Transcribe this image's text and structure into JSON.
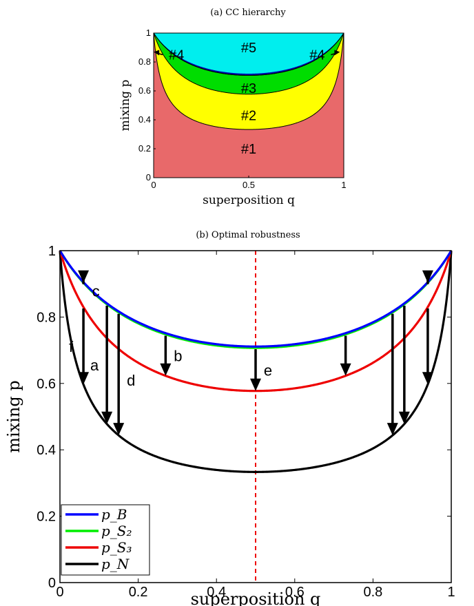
{
  "chart_data": [
    {
      "type": "area",
      "title": "(a) CC hierarchy",
      "xlabel": "superposition q",
      "ylabel": "mixing p",
      "xlim": [
        0,
        1
      ],
      "ylim": [
        0,
        1
      ],
      "xticks": [
        "0",
        "0.5",
        "1"
      ],
      "yticks": [
        "0",
        "0.2",
        "0.4",
        "0.6",
        "0.8",
        "1"
      ],
      "regions": [
        {
          "name": "#1",
          "color": "#e8696a",
          "label_at": {
            "x": 0.5,
            "y": 0.2
          }
        },
        {
          "name": "#2",
          "color": "#ffff00",
          "label_at": {
            "x": 0.5,
            "y": 0.43
          }
        },
        {
          "name": "#3",
          "color": "#00dd00",
          "label_at": {
            "x": 0.5,
            "y": 0.62
          }
        },
        {
          "name": "#4",
          "color": "#0000aa",
          "label_at": [
            {
              "x": 0.12,
              "y": 0.85
            },
            {
              "x": 0.86,
              "y": 0.85
            }
          ]
        },
        {
          "name": "#5",
          "color": "#00eeee",
          "label_at": {
            "x": 0.5,
            "y": 0.9
          }
        }
      ],
      "boundary_curves": [
        {
          "key": "p_N",
          "min": 0.3333
        },
        {
          "key": "p_S3",
          "min": 0.5774
        },
        {
          "key": "p_S2",
          "min": 0.7071
        },
        {
          "key": "p_B",
          "min": 0.7071
        }
      ],
      "grid": false
    },
    {
      "type": "line",
      "title": "(b) Optimal robustness",
      "xlabel": "superposition q",
      "ylabel": "mixing p",
      "xlim": [
        0,
        1
      ],
      "ylim": [
        0,
        1
      ],
      "xticks": [
        "0",
        "0.2",
        "0.4",
        "0.6",
        "0.8",
        "1"
      ],
      "yticks": [
        "0",
        "0.2",
        "0.4",
        "0.6",
        "0.8",
        "1"
      ],
      "legend_position": "bottom-left",
      "grid": false,
      "series": [
        {
          "name": "p_B",
          "color": "#0000ff",
          "min": 0.7071
        },
        {
          "name": "p_S₂",
          "color": "#00ee00",
          "min": 0.7071
        },
        {
          "name": "p_S₃",
          "color": "#ee0000",
          "min": 0.5774
        },
        {
          "name": "p_N",
          "color": "#000000",
          "min": 0.3333
        }
      ],
      "vline": {
        "x": 0.5,
        "color": "#ee0000",
        "style": "dashed"
      },
      "arrows": [
        {
          "label": "c",
          "x": 0.06,
          "from": "p_B",
          "to": "p_S2",
          "label_side": "right"
        },
        {
          "label": "",
          "x": 0.94,
          "from": "p_B",
          "to": "p_S2"
        },
        {
          "label": "f",
          "x": 0.06,
          "from": "p_S3",
          "to": "p_N",
          "label_side": "left"
        },
        {
          "label": "a",
          "x": 0.12,
          "from": "p_S2",
          "to": "p_N",
          "label_side": "left"
        },
        {
          "label": "d",
          "x": 0.15,
          "from": "p_S2",
          "to": "p_N",
          "label_side": "right"
        },
        {
          "label": "b",
          "x": 0.27,
          "from": "p_S2",
          "to": "p_S3",
          "label_side": "right"
        },
        {
          "label": "e",
          "x": 0.5,
          "from": "p_S2",
          "to": "p_S3",
          "label_side": "right"
        },
        {
          "label": "",
          "x": 0.73,
          "from": "p_S2",
          "to": "p_S3"
        },
        {
          "label": "",
          "x": 0.85,
          "from": "p_S2",
          "to": "p_N"
        },
        {
          "label": "",
          "x": 0.88,
          "from": "p_S2",
          "to": "p_N"
        },
        {
          "label": "",
          "x": 0.94,
          "from": "p_S3",
          "to": "p_N"
        }
      ]
    }
  ]
}
